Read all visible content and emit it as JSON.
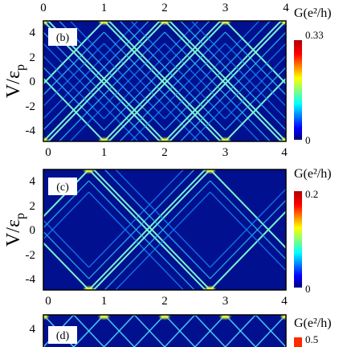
{
  "chart_data": [
    {
      "type": "heatmap",
      "panel_label": "(b)",
      "x_ticks": [
        "0",
        "1",
        "2",
        "3",
        "4"
      ],
      "y_ticks": [
        "4",
        "2",
        "0",
        "-2",
        "-4"
      ],
      "ylabel_main": "V/ε",
      "ylabel_sub": "p",
      "xlim": [
        0,
        4
      ],
      "ylim": [
        -4.8,
        4.8
      ],
      "colorbar": {
        "title": "G(e²/h)",
        "max_label": "0.33",
        "min_label": "0",
        "max": 0.33,
        "min": 0
      },
      "pattern": {
        "arch_centers": [
          0,
          1,
          2,
          3,
          4
        ],
        "top_edge": 4.8,
        "bottom_edge": -4.8,
        "slope": 5.0,
        "levels": 3
      }
    },
    {
      "type": "heatmap",
      "panel_label": "(c)",
      "x_ticks": [
        "0",
        "1",
        "2",
        "3",
        "4"
      ],
      "y_ticks": [
        "4",
        "2",
        "0",
        "-2",
        "-4"
      ],
      "ylabel_main": "V/ε",
      "ylabel_sub": "p",
      "xlim": [
        0,
        4
      ],
      "ylim": [
        -4.8,
        4.8
      ],
      "colorbar": {
        "title": "G(e²/h)",
        "max_label": "0.2",
        "min_label": "0",
        "max": 0.2,
        "min": 0
      },
      "pattern": {
        "arch_centers": [
          0.75,
          2.75
        ],
        "top_edge": 4.8,
        "bottom_edge": -4.8,
        "slope": 5.0,
        "levels": 3
      }
    },
    {
      "type": "heatmap",
      "panel_label": "(d)",
      "y_ticks": [
        "4"
      ],
      "colorbar": {
        "title": "G(e²/h)",
        "max_label": "0.5",
        "max": 0.5
      }
    }
  ]
}
